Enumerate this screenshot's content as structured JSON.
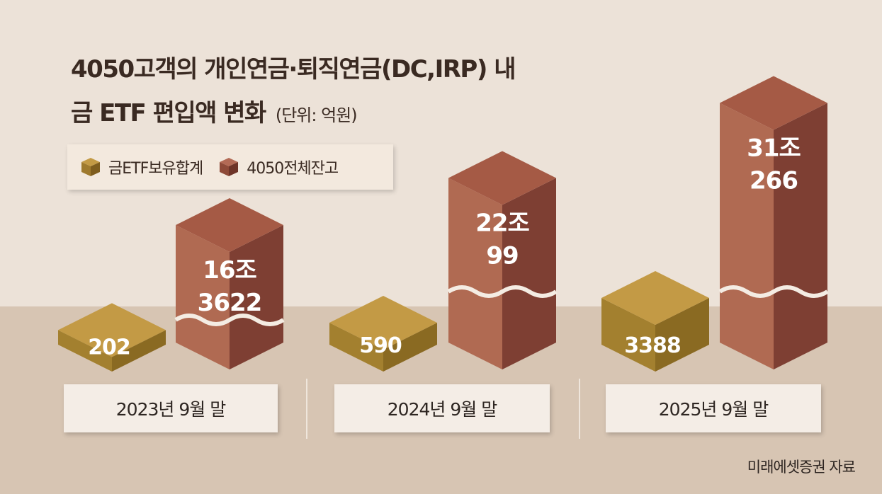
{
  "title_line1": "4050고객의 개인연금·퇴직연금(DC,IRP) 내",
  "title_line2": "금 ETF 편입액 변화",
  "unit": "(단위: 억원)",
  "source": "미래에셋증권 자료",
  "colors": {
    "gold": "#a07a2c",
    "brown": "#8e4a38",
    "bg_top": "#ece2d8",
    "bg_bottom": "#d6c4b2"
  },
  "chart_data": {
    "type": "bar",
    "categories": [
      "2023년 9월 말",
      "2024년 9월 말",
      "2025년 9월 말"
    ],
    "series": [
      {
        "name": "금ETF보유합계",
        "values": [
          202,
          590,
          3388
        ],
        "labels": [
          "202",
          "590",
          "3388"
        ]
      },
      {
        "name": "4050전체잔고",
        "values": [
          163622,
          220099,
          310266
        ],
        "labels_top": [
          "16조",
          "22조",
          "31조"
        ],
        "labels_bottom": [
          "3622",
          "99",
          "266"
        ]
      }
    ],
    "axis_break": true,
    "legend": "top-left",
    "grid": false
  }
}
